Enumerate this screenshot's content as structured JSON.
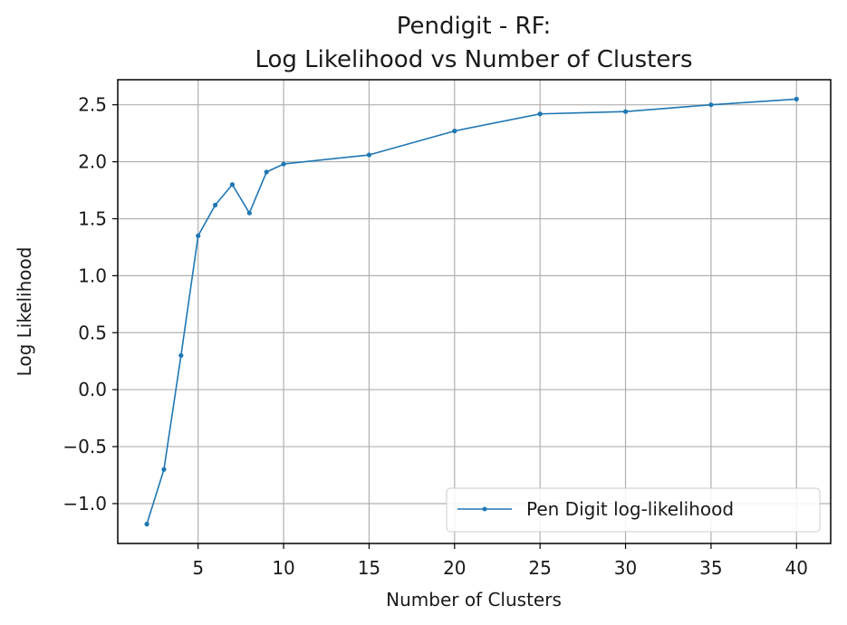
{
  "chart_data": {
    "type": "line",
    "title_line1": "Pendigit - RF:",
    "title_line2": "Log Likelihood vs Number of Clusters",
    "xlabel": "Number of Clusters",
    "ylabel": "Log Likelihood",
    "xlim": [
      0.3,
      42
    ],
    "ylim": [
      -1.35,
      2.72
    ],
    "xticks": [
      5,
      10,
      15,
      20,
      25,
      30,
      35,
      40
    ],
    "yticks": [
      -1.0,
      -0.5,
      0.0,
      0.5,
      1.0,
      1.5,
      2.0,
      2.5
    ],
    "ytick_labels": [
      "−1.0",
      "−0.5",
      "0.0",
      "0.5",
      "1.0",
      "1.5",
      "2.0",
      "2.5"
    ],
    "grid": true,
    "legend_position": "lower-right",
    "series": [
      {
        "name": "Pen Digit log-likelihood",
        "color": "#1f77b4",
        "x": [
          2,
          3,
          4,
          5,
          6,
          7,
          8,
          9,
          10,
          15,
          20,
          25,
          30,
          35,
          40
        ],
        "y": [
          -1.18,
          -0.7,
          0.3,
          1.35,
          1.62,
          1.8,
          1.55,
          1.91,
          1.98,
          2.06,
          2.27,
          2.42,
          2.44,
          2.5,
          2.55
        ]
      }
    ]
  }
}
